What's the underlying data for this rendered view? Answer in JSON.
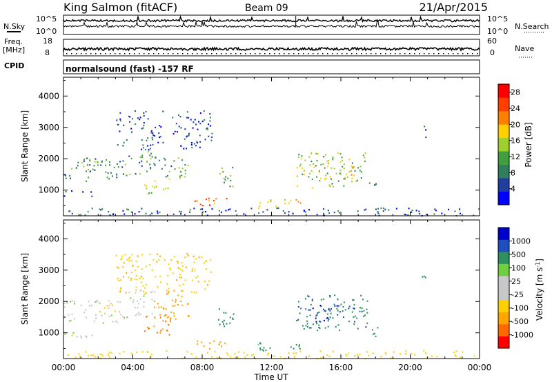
{
  "header": {
    "station": "King Salmon (fitACF)",
    "beam": "Beam 09",
    "date": "21/Apr/2015"
  },
  "noise_panel": {
    "left_label": "N.Sky",
    "right_label": "N.Search",
    "left_ticks": [
      "10^5",
      "10^0"
    ],
    "right_ticks": [
      "10^5",
      "10^0"
    ]
  },
  "freq_panel": {
    "left_label_1": "Freq.",
    "left_label_2": "[MHz]",
    "left_ticks": [
      "18",
      "8"
    ],
    "right_label": "Nave",
    "right_ticks": [
      "60",
      "0"
    ]
  },
  "cpid": {
    "label": "CPID",
    "text": "normalsound (fast) -157 RF"
  },
  "y_axis": {
    "label": "Slant Range [km]",
    "ticks": [
      "4000",
      "3000",
      "2000",
      "1000"
    ]
  },
  "x_axis": {
    "label": "Time UT",
    "ticks": [
      "00:00",
      "04:00",
      "08:00",
      "12:00",
      "16:00",
      "20:00",
      "00:00"
    ]
  },
  "colors": {
    "frame": "#000000",
    "power_scale": [
      "#0000ff",
      "#1f3f9f",
      "#2f7f5f",
      "#3f9f3f",
      "#9fcf2f",
      "#ffcf00",
      "#ff7f00",
      "#ff3f00",
      "#ff0000"
    ],
    "velocity_scale": [
      "#ff0000",
      "#ff6a00",
      "#ffa500",
      "#ffd000",
      "#c8c8c8",
      "#c8c8c8",
      "#6fcf3f",
      "#2f8f5f",
      "#1f4fbf",
      "#0000cc"
    ]
  },
  "chart_data": [
    {
      "type": "heatmap",
      "title": "",
      "xlabel": "Time UT",
      "ylabel": "Slant Range [km]",
      "xlim": [
        "00:00",
        "24:00"
      ],
      "ylim": [
        180,
        4600
      ],
      "colorbar": {
        "label": "Power [dB]",
        "ticks": [
          "28",
          "24",
          "20",
          "16",
          "12",
          "8",
          "4"
        ],
        "range": [
          0,
          30
        ]
      },
      "regions": [
        {
          "t0": 0.0,
          "t1": 3.7,
          "r0": 1300,
          "r1": 2050,
          "level": 9,
          "note": "main band 00-04 UT"
        },
        {
          "t0": 1.7,
          "t1": 2.6,
          "r0": 1700,
          "r1": 1950,
          "level": 14
        },
        {
          "t0": 3.7,
          "t1": 5.3,
          "r0": 1500,
          "r1": 2400,
          "level": 10
        },
        {
          "t0": 0.0,
          "t1": 1.9,
          "r0": 800,
          "r1": 1050,
          "level": 6
        },
        {
          "t0": 4.6,
          "t1": 6.2,
          "r0": 900,
          "r1": 1400,
          "level": 14
        },
        {
          "t0": 5.2,
          "t1": 7.2,
          "r0": 1400,
          "r1": 2100,
          "level": 11
        },
        {
          "t0": 7.3,
          "t1": 9.4,
          "r0": 500,
          "r1": 760,
          "level": 22
        },
        {
          "t0": 8.9,
          "t1": 9.8,
          "r0": 1100,
          "r1": 1800,
          "level": 12
        },
        {
          "t0": 11.2,
          "t1": 13.8,
          "r0": 450,
          "r1": 750,
          "level": 20
        },
        {
          "t0": 13.4,
          "t1": 17.5,
          "r0": 1100,
          "r1": 2250,
          "level": 14
        },
        {
          "t0": 14.2,
          "t1": 16.8,
          "r0": 1350,
          "r1": 1900,
          "level": 18
        },
        {
          "t0": 17.6,
          "t1": 18.2,
          "r0": 900,
          "r1": 1300,
          "level": 8
        },
        {
          "t0": 3.0,
          "t1": 8.6,
          "r0": 2300,
          "r1": 3550,
          "level": 5,
          "note": "scattered upper echoes"
        },
        {
          "t0": 20.5,
          "t1": 21.0,
          "r0": 2700,
          "r1": 3100,
          "level": 5
        },
        {
          "t0": 0.0,
          "t1": 24.0,
          "r0": 200,
          "r1": 450,
          "level": 6,
          "note": "near-range noise"
        }
      ]
    },
    {
      "type": "heatmap",
      "title": "",
      "xlabel": "Time UT",
      "ylabel": "Slant Range [km]",
      "xlim": [
        "00:00",
        "24:00"
      ],
      "ylim": [
        180,
        4600
      ],
      "colorbar": {
        "label": "Velocity [m s^-1]",
        "ticks": [
          "1000",
          "500",
          "100",
          "25",
          "-25",
          "-100",
          "-500",
          "-1000"
        ],
        "range": [
          -1000,
          1000
        ]
      },
      "regions": [
        {
          "t0": 0.0,
          "t1": 3.7,
          "r0": 1300,
          "r1": 2050,
          "velocity": 0,
          "note": "ground scatter (grey)"
        },
        {
          "t0": 3.7,
          "t1": 5.3,
          "r0": 1500,
          "r1": 2400,
          "velocity": 0
        },
        {
          "t0": 0.0,
          "t1": 1.9,
          "r0": 800,
          "r1": 1050,
          "velocity": 0
        },
        {
          "t0": 4.6,
          "t1": 6.2,
          "r0": 900,
          "r1": 1600,
          "velocity": -550
        },
        {
          "t0": 5.2,
          "t1": 7.2,
          "r0": 1400,
          "r1": 2400,
          "velocity": -300
        },
        {
          "t0": 7.3,
          "t1": 9.4,
          "r0": 500,
          "r1": 760,
          "velocity": -150
        },
        {
          "t0": 8.9,
          "t1": 9.8,
          "r0": 1100,
          "r1": 1800,
          "velocity": 200
        },
        {
          "t0": 11.2,
          "t1": 13.8,
          "r0": 450,
          "r1": 750,
          "velocity": 150
        },
        {
          "t0": 13.4,
          "t1": 17.5,
          "r0": 1100,
          "r1": 2250,
          "velocity": 400
        },
        {
          "t0": 14.2,
          "t1": 16.8,
          "r0": 1350,
          "r1": 1900,
          "velocity": 900
        },
        {
          "t0": 17.6,
          "t1": 18.2,
          "r0": 900,
          "r1": 1300,
          "velocity": 120
        },
        {
          "t0": 3.0,
          "t1": 8.6,
          "r0": 2300,
          "r1": 3550,
          "velocity": -80
        },
        {
          "t0": 20.5,
          "t1": 21.0,
          "r0": 2700,
          "r1": 3100,
          "velocity": 300
        },
        {
          "t0": 0.0,
          "t1": 24.0,
          "r0": 200,
          "r1": 450,
          "velocity": -60
        }
      ]
    }
  ]
}
